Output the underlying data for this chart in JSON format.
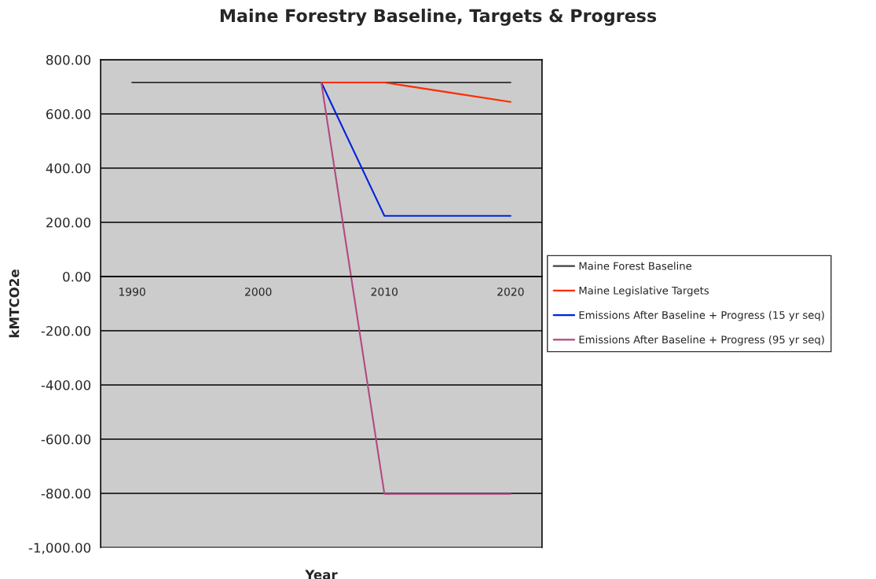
{
  "chart_data": {
    "type": "line",
    "title": "Maine Forestry Baseline, Targets & Progress",
    "xlabel": "Year",
    "ylabel": "kMTCO2e",
    "categories": [
      "1990",
      null,
      "2000",
      null,
      "2010",
      null,
      "2020"
    ],
    "series": [
      {
        "name": "Maine Forest Baseline",
        "color": "#404040",
        "values": [
          716,
          716,
          716,
          716,
          716,
          716,
          716
        ]
      },
      {
        "name": "Maine Legislative Targets",
        "color": "#ff2a00",
        "values": [
          null,
          null,
          null,
          716,
          716,
          680,
          644
        ]
      },
      {
        "name": "Emissions After Baseline + Progress (15 yr seq)",
        "color": "#0022dd",
        "values": [
          null,
          null,
          null,
          716,
          224,
          224,
          224
        ]
      },
      {
        "name": "Emissions After Baseline + Progress (95 yr seq)",
        "color": "#b04a80",
        "values": [
          null,
          null,
          null,
          716,
          -802,
          -802,
          -802
        ]
      }
    ],
    "ylim": [
      -1000,
      800
    ],
    "yticks": [
      {
        "value": -1000,
        "label": "-1,000.00"
      },
      {
        "value": -800,
        "label": "-800.00"
      },
      {
        "value": -600,
        "label": "-600.00"
      },
      {
        "value": -400,
        "label": "-400.00"
      },
      {
        "value": -200,
        "label": "-200.00"
      },
      {
        "value": 0,
        "label": "0.00"
      },
      {
        "value": 200,
        "label": "200.00"
      },
      {
        "value": 400,
        "label": "400.00"
      },
      {
        "value": 600,
        "label": "600.00"
      },
      {
        "value": 800,
        "label": "800.00"
      }
    ],
    "grid": "y",
    "legend": "right",
    "marker": "none",
    "line_style": "solid"
  }
}
